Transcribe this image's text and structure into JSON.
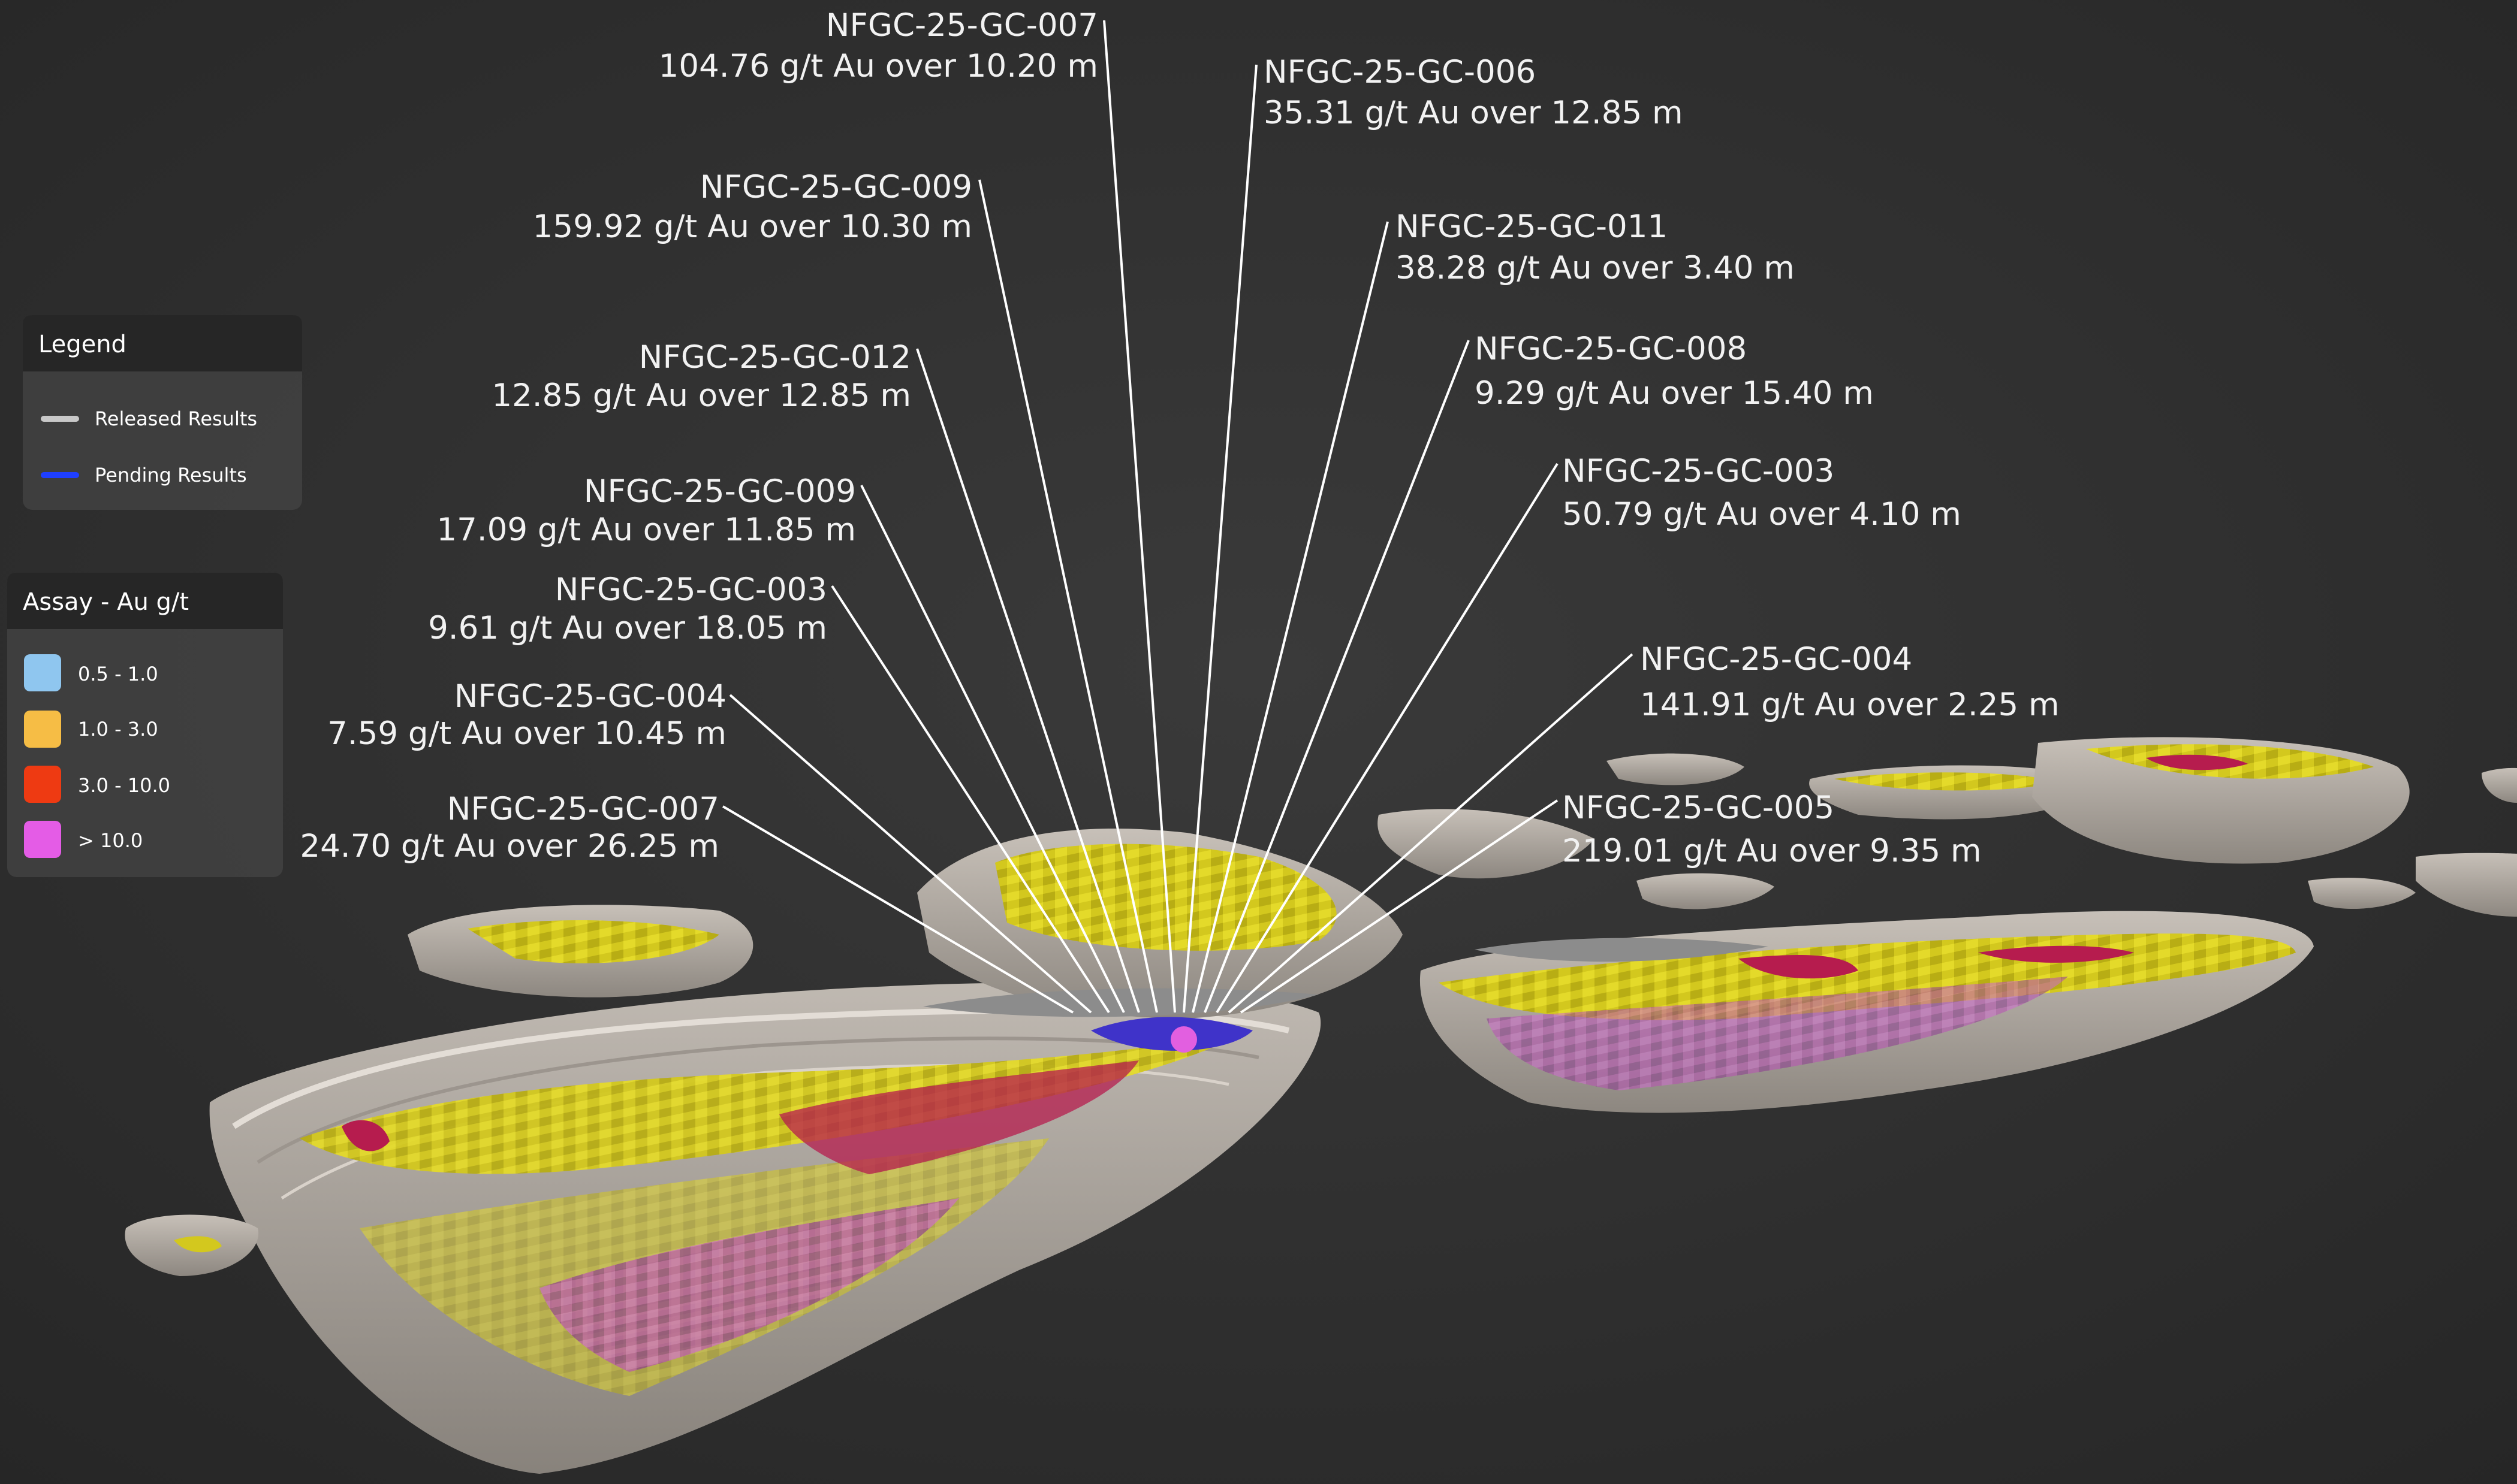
{
  "legend": {
    "title": "Legend",
    "items": [
      {
        "label": "Released Results",
        "color": "#c8c8c8"
      },
      {
        "label": "Pending Results",
        "color": "#1f3fff"
      }
    ]
  },
  "assay": {
    "title": "Assay - Au g/t",
    "items": [
      {
        "label": "0.5 - 1.0",
        "color": "#8fc6ef"
      },
      {
        "label": "1.0 - 3.0",
        "color": "#f6bd45"
      },
      {
        "label": "3.0 - 10.0",
        "color": "#ee3a12"
      },
      {
        "label": "> 10.0",
        "color": "#e45ce6"
      }
    ]
  },
  "callouts": [
    {
      "hole": "NFGC-25-GC-007",
      "result": "104.76 g/t Au over 10.20 m"
    },
    {
      "hole": "NFGC-25-GC-006",
      "result": "35.31 g/t Au over 12.85 m"
    },
    {
      "hole": "NFGC-25-GC-009",
      "result": "159.92 g/t Au over 10.30 m"
    },
    {
      "hole": "NFGC-25-GC-011",
      "result": "38.28 g/t Au over 3.40 m"
    },
    {
      "hole": "NFGC-25-GC-012",
      "result": "12.85 g/t Au over 12.85 m"
    },
    {
      "hole": "NFGC-25-GC-008",
      "result": "9.29 g/t Au over 15.40 m"
    },
    {
      "hole": "NFGC-25-GC-009",
      "result": "17.09 g/t Au over 11.85 m"
    },
    {
      "hole": "NFGC-25-GC-003",
      "result": "50.79 g/t Au over 4.10 m"
    },
    {
      "hole": "NFGC-25-GC-003",
      "result": "9.61 g/t Au over 18.05 m"
    },
    {
      "hole": "NFGC-25-GC-004",
      "result": "141.91 g/t Au over 2.25 m"
    },
    {
      "hole": "NFGC-25-GC-004",
      "result": "7.59 g/t Au over 10.45 m"
    },
    {
      "hole": "NFGC-25-GC-005",
      "result": "219.01 g/t Au over 9.35 m"
    },
    {
      "hole": "NFGC-25-GC-007",
      "result": "24.70 g/t Au over 26.25 m"
    }
  ],
  "colors": {
    "background": "#2e2e2e",
    "pit_shell": "#b5aea7",
    "mineralized_block": "#d6cc1c",
    "high_grade": "#c01b52",
    "very_high_grade": "#c24fbd",
    "callout_line": "#ffffff"
  }
}
